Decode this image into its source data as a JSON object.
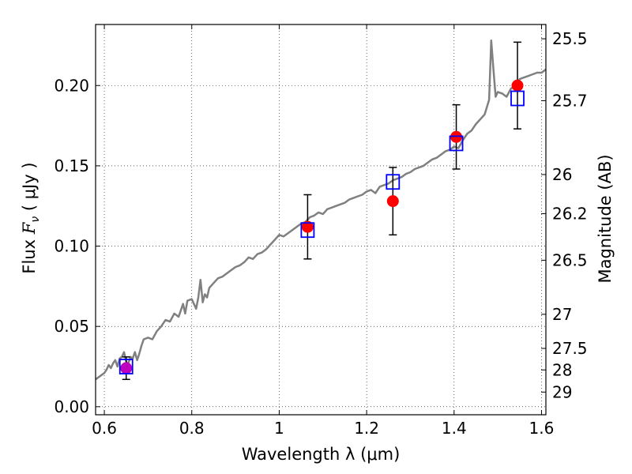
{
  "chart_data": {
    "type": "scatter",
    "xlabel": "Wavelength  λ (μm)",
    "ylabel_parts": {
      "pre": "Flux  ",
      "sym": "F",
      "sub": "ν",
      "post": "  ( μJy )"
    },
    "ylabel_right": "Magnitude (AB)",
    "xlim": [
      0.58,
      1.61
    ],
    "ylim": [
      -0.005,
      0.238
    ],
    "grid": true,
    "x_ticks": [
      {
        "v": 0.6,
        "label": "0.6"
      },
      {
        "v": 0.8,
        "label": "0.8"
      },
      {
        "v": 1.0,
        "label": "1"
      },
      {
        "v": 1.2,
        "label": "1.2"
      },
      {
        "v": 1.4,
        "label": "1.4"
      },
      {
        "v": 1.6,
        "label": "1.6"
      }
    ],
    "y_ticks": [
      {
        "v": 0.0,
        "label": "0.00"
      },
      {
        "v": 0.05,
        "label": "0.05"
      },
      {
        "v": 0.1,
        "label": "0.10"
      },
      {
        "v": 0.15,
        "label": "0.15"
      },
      {
        "v": 0.2,
        "label": "0.20"
      }
    ],
    "right_ticks": [
      {
        "mag": 25.5,
        "label": "25.5"
      },
      {
        "mag": 25.7,
        "label": "25.7"
      },
      {
        "mag": 26.0,
        "label": "26"
      },
      {
        "mag": 26.2,
        "label": "26.2"
      },
      {
        "mag": 26.5,
        "label": "26.5"
      },
      {
        "mag": 27.0,
        "label": "27"
      },
      {
        "mag": 27.5,
        "label": "27.5"
      },
      {
        "mag": 28.0,
        "label": "28"
      },
      {
        "mag": 29.0,
        "label": "29"
      }
    ],
    "spectrum": {
      "color": "#808080",
      "x": [
        0.58,
        0.59,
        0.6,
        0.605,
        0.61,
        0.615,
        0.62,
        0.625,
        0.63,
        0.635,
        0.64,
        0.645,
        0.65,
        0.655,
        0.66,
        0.665,
        0.67,
        0.675,
        0.68,
        0.685,
        0.69,
        0.7,
        0.71,
        0.72,
        0.73,
        0.74,
        0.75,
        0.76,
        0.77,
        0.78,
        0.785,
        0.79,
        0.8,
        0.81,
        0.815,
        0.82,
        0.825,
        0.83,
        0.835,
        0.84,
        0.85,
        0.86,
        0.87,
        0.88,
        0.89,
        0.9,
        0.91,
        0.92,
        0.93,
        0.94,
        0.95,
        0.96,
        0.97,
        0.98,
        0.99,
        1.0,
        1.01,
        1.02,
        1.03,
        1.04,
        1.05,
        1.06,
        1.07,
        1.08,
        1.09,
        1.1,
        1.11,
        1.12,
        1.13,
        1.14,
        1.15,
        1.16,
        1.17,
        1.18,
        1.19,
        1.2,
        1.21,
        1.22,
        1.23,
        1.24,
        1.25,
        1.26,
        1.27,
        1.28,
        1.29,
        1.3,
        1.31,
        1.32,
        1.33,
        1.34,
        1.35,
        1.36,
        1.37,
        1.38,
        1.39,
        1.4,
        1.41,
        1.42,
        1.43,
        1.44,
        1.45,
        1.46,
        1.47,
        1.48,
        1.485,
        1.49,
        1.495,
        1.5,
        1.51,
        1.52,
        1.53,
        1.54,
        1.55,
        1.56,
        1.57,
        1.58,
        1.59,
        1.6,
        1.61
      ],
      "y": [
        0.017,
        0.019,
        0.021,
        0.023,
        0.026,
        0.024,
        0.027,
        0.029,
        0.025,
        0.03,
        0.031,
        0.034,
        0.028,
        0.027,
        0.031,
        0.03,
        0.034,
        0.029,
        0.033,
        0.038,
        0.042,
        0.043,
        0.042,
        0.047,
        0.05,
        0.054,
        0.053,
        0.058,
        0.056,
        0.064,
        0.058,
        0.066,
        0.067,
        0.061,
        0.068,
        0.079,
        0.065,
        0.07,
        0.068,
        0.074,
        0.077,
        0.08,
        0.081,
        0.083,
        0.085,
        0.087,
        0.088,
        0.09,
        0.093,
        0.092,
        0.095,
        0.096,
        0.098,
        0.101,
        0.104,
        0.107,
        0.106,
        0.108,
        0.11,
        0.112,
        0.114,
        0.115,
        0.118,
        0.119,
        0.121,
        0.12,
        0.123,
        0.124,
        0.125,
        0.126,
        0.127,
        0.129,
        0.13,
        0.131,
        0.132,
        0.134,
        0.135,
        0.133,
        0.137,
        0.138,
        0.139,
        0.141,
        0.142,
        0.143,
        0.145,
        0.146,
        0.148,
        0.149,
        0.15,
        0.152,
        0.154,
        0.155,
        0.157,
        0.159,
        0.16,
        0.162,
        0.161,
        0.166,
        0.17,
        0.172,
        0.176,
        0.179,
        0.182,
        0.191,
        0.228,
        0.21,
        0.193,
        0.196,
        0.195,
        0.193,
        0.198,
        0.2,
        0.204,
        0.205,
        0.206,
        0.207,
        0.208,
        0.208,
        0.21
      ]
    },
    "series": [
      {
        "marker": "circle",
        "color": "#ff0000",
        "points": [
          {
            "x": 1.065,
            "y": 0.112,
            "err": 0.02
          },
          {
            "x": 1.26,
            "y": 0.128,
            "err": 0.021
          },
          {
            "x": 1.405,
            "y": 0.168,
            "err": 0.02
          },
          {
            "x": 1.545,
            "y": 0.2,
            "err": 0.027
          }
        ]
      },
      {
        "marker": "circle",
        "color": "#bf00bf",
        "points": [
          {
            "x": 0.65,
            "y": 0.024,
            "err": 0.007
          }
        ]
      },
      {
        "marker": "square-open",
        "color": "#0000ff",
        "points": [
          {
            "x": 0.65,
            "y": 0.025
          },
          {
            "x": 1.065,
            "y": 0.11
          },
          {
            "x": 1.26,
            "y": 0.14
          },
          {
            "x": 1.405,
            "y": 0.164
          },
          {
            "x": 1.545,
            "y": 0.192
          }
        ]
      }
    ]
  }
}
